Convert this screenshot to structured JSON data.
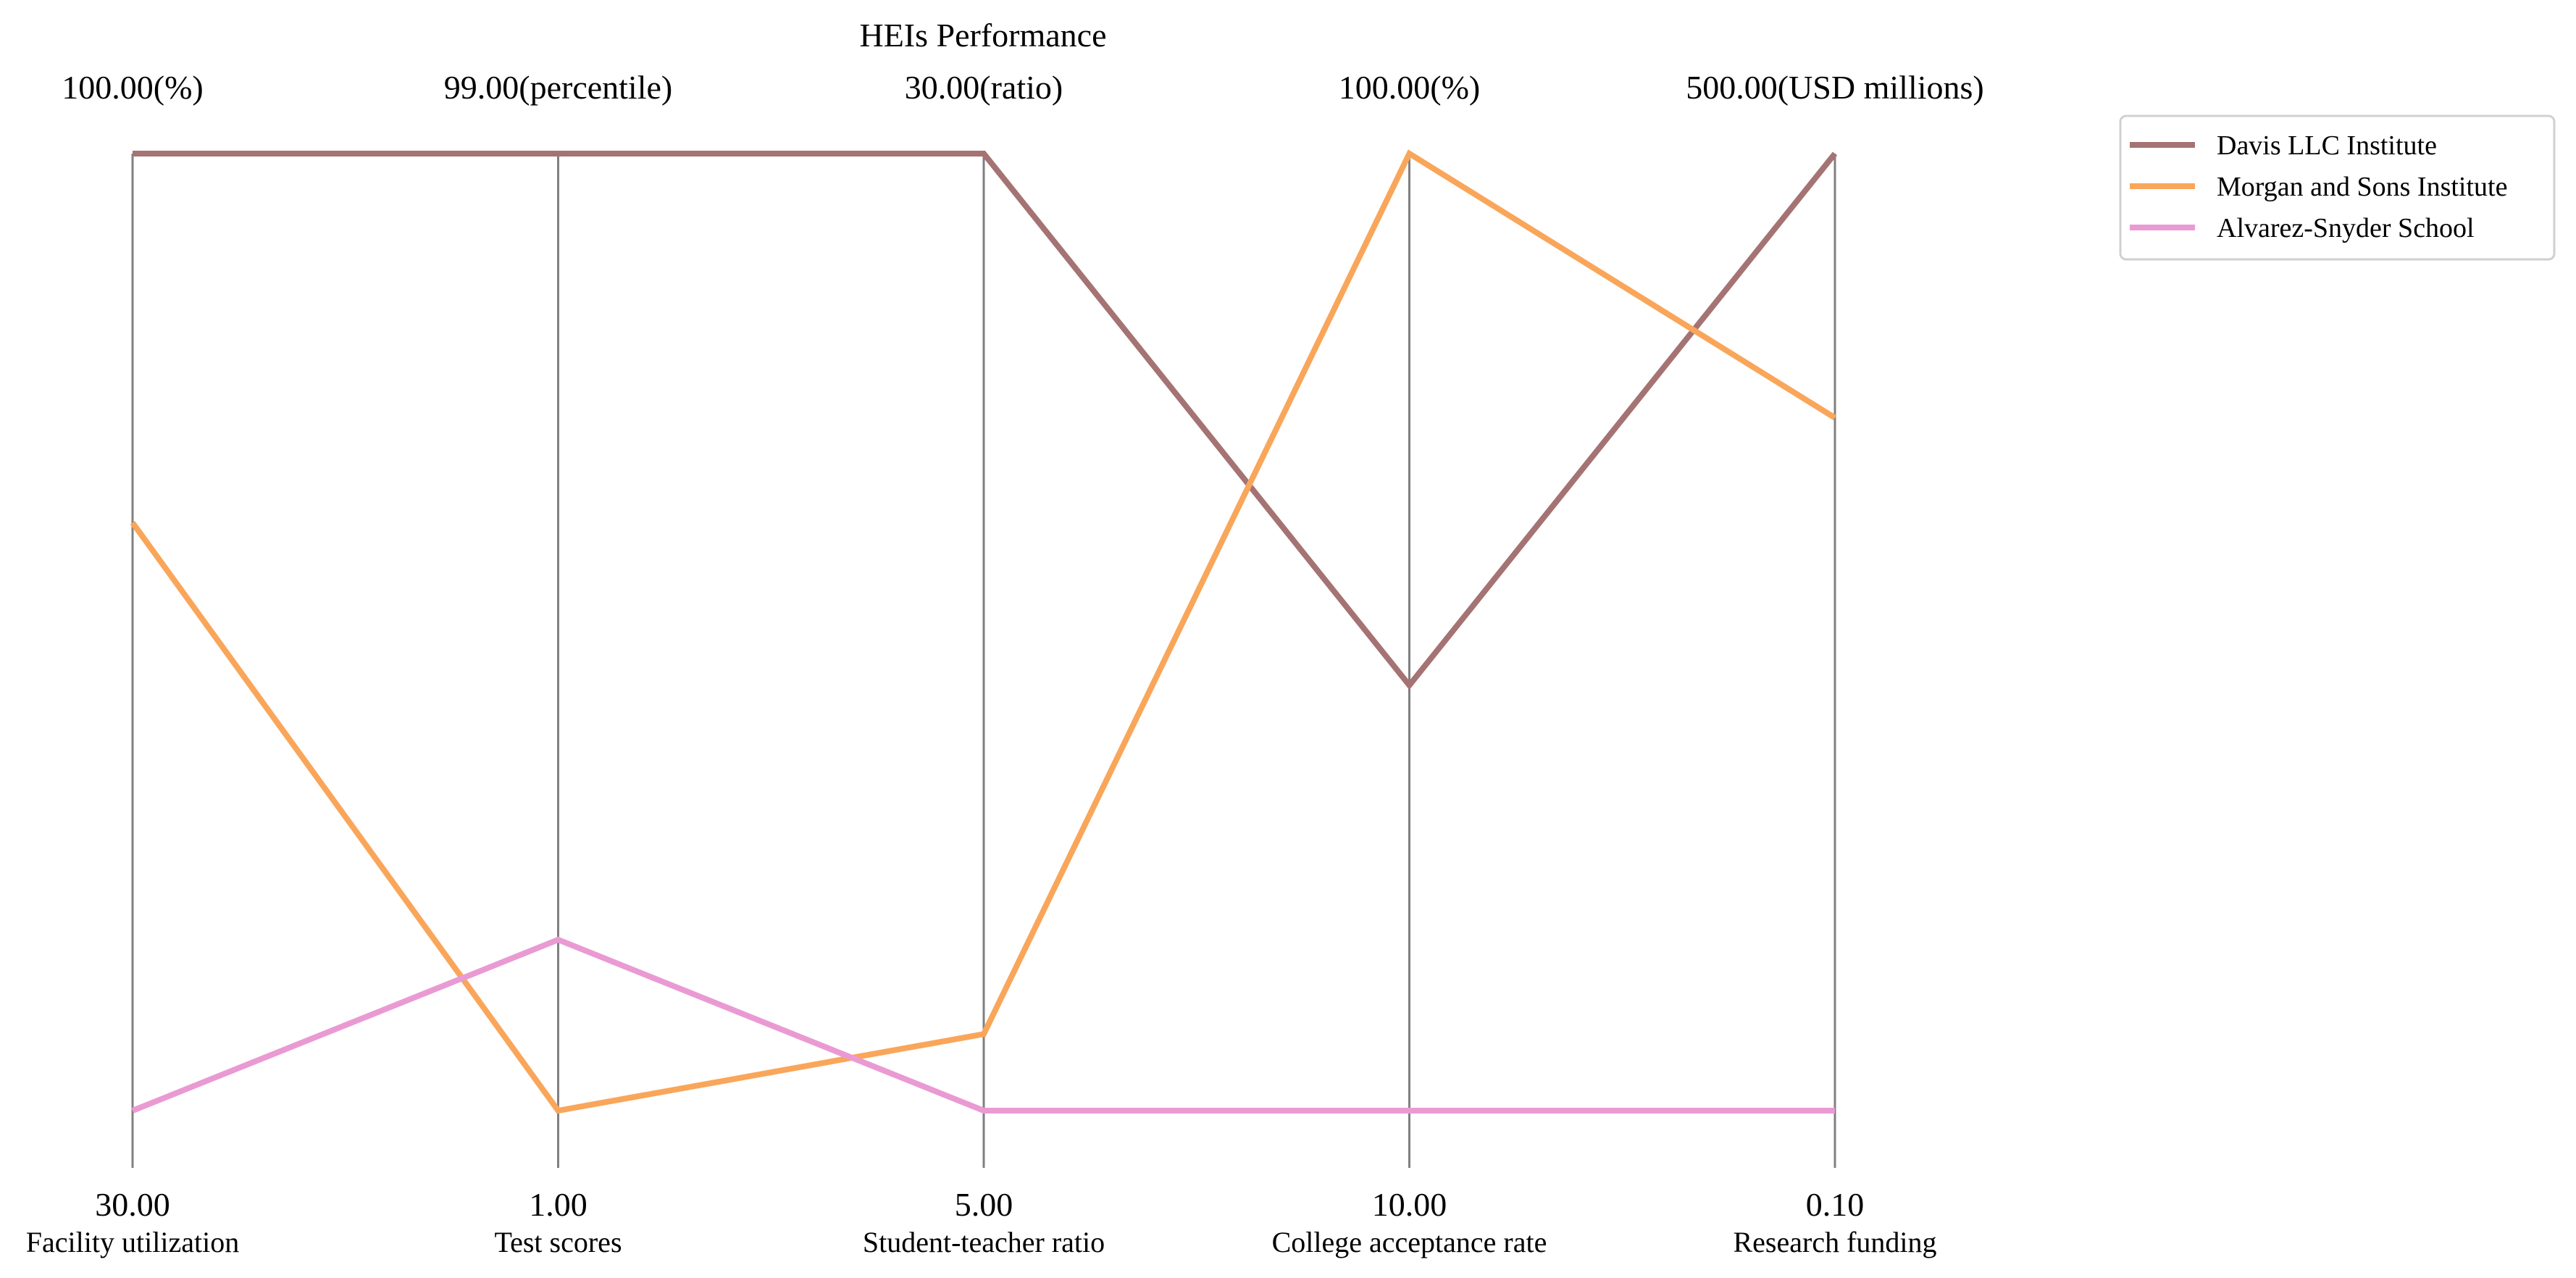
{
  "chart_data": {
    "type": "parallel-coordinates",
    "title": "HEIs Performance",
    "axes": [
      {
        "name": "Facility utilization",
        "min_label": "30.00",
        "max_label": "100.00(%)",
        "min": 30,
        "max": 100,
        "unit": "%"
      },
      {
        "name": "Test scores",
        "min_label": "1.00",
        "max_label": "99.00(percentile)",
        "min": 1,
        "max": 99,
        "unit": "percentile"
      },
      {
        "name": "Student-teacher ratio",
        "min_label": "5.00",
        "max_label": "30.00(ratio)",
        "min": 5,
        "max": 30,
        "unit": "ratio"
      },
      {
        "name": "College acceptance rate",
        "min_label": "10.00",
        "max_label": "100.00(%)",
        "min": 10,
        "max": 100,
        "unit": "%"
      },
      {
        "name": "Research funding",
        "min_label": "0.10",
        "max_label": "500.00(USD millions)",
        "min": 0.1,
        "max": 500,
        "unit": "USD millions"
      }
    ],
    "series": [
      {
        "name": "Davis LLC  Institute",
        "color": "#a57373",
        "values": [
          100,
          99,
          30,
          50,
          500
        ]
      },
      {
        "name": "Morgan and Sons  Institute",
        "color": "#f9a65a",
        "values": [
          73,
          1,
          7,
          100,
          362
        ]
      },
      {
        "name": "Alvarez-Snyder  School",
        "color": "#ea9ad3",
        "values": [
          30,
          18.5,
          5,
          10,
          0.1
        ]
      }
    ],
    "legend_position": "top-right",
    "grid": false
  }
}
